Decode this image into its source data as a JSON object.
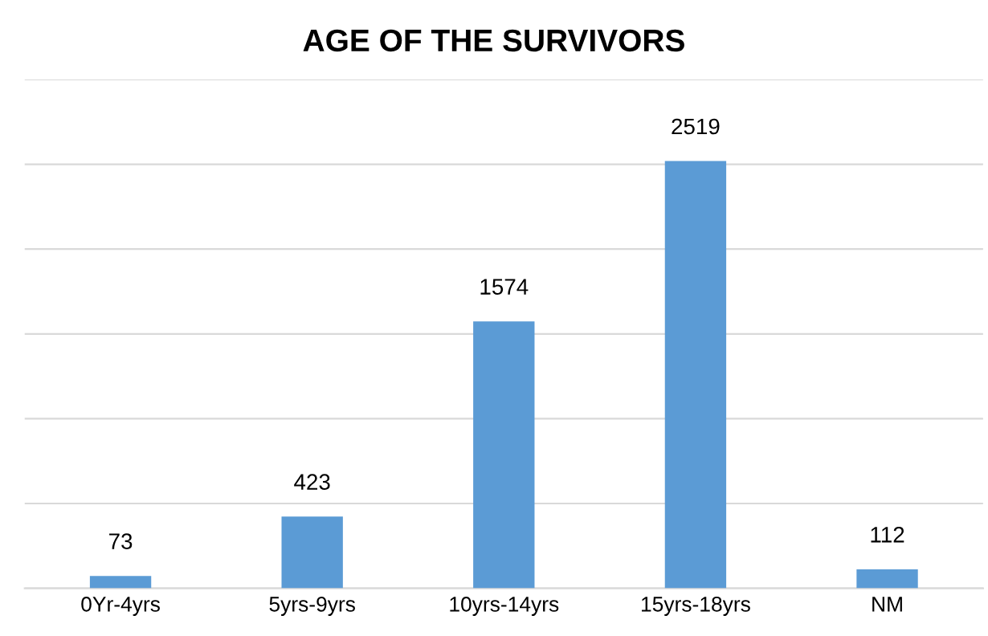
{
  "chart_data": {
    "type": "bar",
    "title": "AGE OF THE SURVIVORS",
    "categories": [
      "0Yr-4yrs",
      "5yrs-9yrs",
      "10yrs-14yrs",
      "15yrs-18yrs",
      "NM"
    ],
    "values": [
      73,
      423,
      1574,
      2519,
      112
    ],
    "color": "#5b9bd5",
    "ylim": [
      0,
      3000
    ],
    "yticks": [
      {
        "value": 0,
        "label": null
      },
      {
        "value": 500,
        "label": null
      },
      {
        "value": 1000,
        "label": null
      },
      {
        "value": 1500,
        "label": null
      },
      {
        "value": 2000,
        "label": null
      },
      {
        "value": 2500,
        "label": null
      },
      {
        "value": 3000,
        "label": null
      }
    ],
    "grid": "y",
    "data_labels": true,
    "tick_labels": "x"
  }
}
